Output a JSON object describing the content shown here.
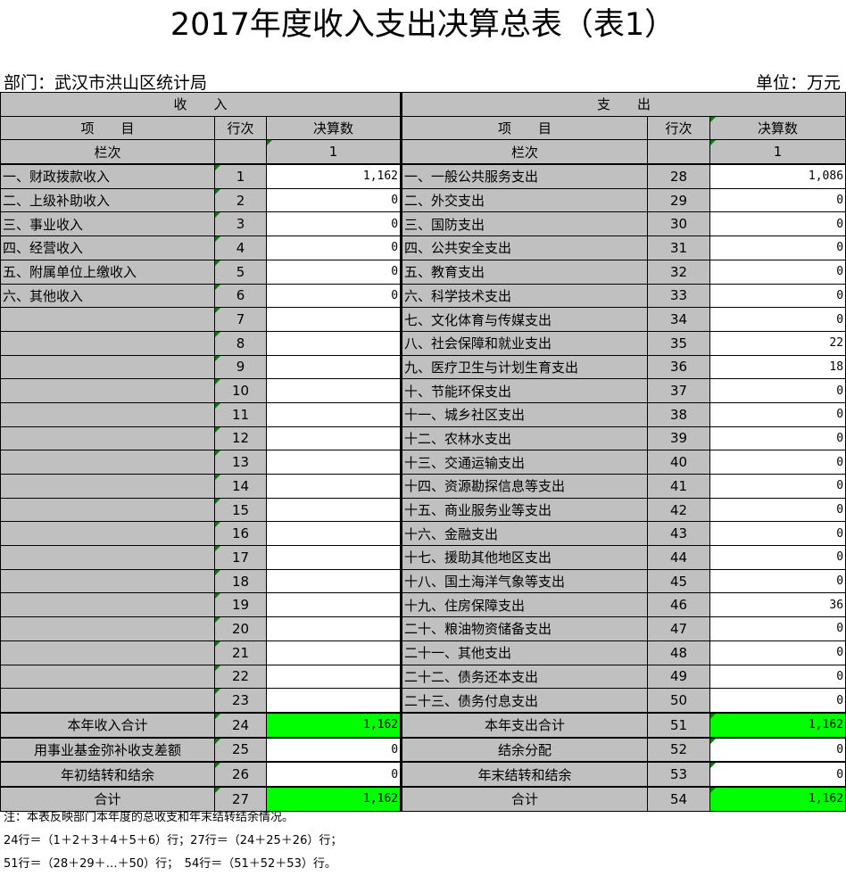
{
  "title": "2017年度收入支出决算总表（表1）",
  "department": "部门：武汉市洪山区统计局",
  "unit": "单位：万元",
  "headers": {
    "income": "收　　入",
    "expense": "支　　出",
    "item": "项　　目",
    "row_no": "行次",
    "amount": "决算数",
    "col_label": "栏次",
    "col_no": "1"
  },
  "income_rows": [
    {
      "name": "一、财政拨款收入",
      "no": "1",
      "value": "1,162"
    },
    {
      "name": "二、上级补助收入",
      "no": "2",
      "value": "0"
    },
    {
      "name": "三、事业收入",
      "no": "3",
      "value": "0"
    },
    {
      "name": "四、经营收入",
      "no": "4",
      "value": "0"
    },
    {
      "name": "五、附属单位上缴收入",
      "no": "5",
      "value": "0"
    },
    {
      "name": "六、其他收入",
      "no": "6",
      "value": "0"
    },
    {
      "name": "",
      "no": "7",
      "value": ""
    },
    {
      "name": "",
      "no": "8",
      "value": ""
    },
    {
      "name": "",
      "no": "9",
      "value": ""
    },
    {
      "name": "",
      "no": "10",
      "value": ""
    },
    {
      "name": "",
      "no": "11",
      "value": ""
    },
    {
      "name": "",
      "no": "12",
      "value": ""
    },
    {
      "name": "",
      "no": "13",
      "value": ""
    },
    {
      "name": "",
      "no": "14",
      "value": ""
    },
    {
      "name": "",
      "no": "15",
      "value": ""
    },
    {
      "name": "",
      "no": "16",
      "value": ""
    },
    {
      "name": "",
      "no": "17",
      "value": ""
    },
    {
      "name": "",
      "no": "18",
      "value": ""
    },
    {
      "name": "",
      "no": "19",
      "value": ""
    },
    {
      "name": "",
      "no": "20",
      "value": ""
    },
    {
      "name": "",
      "no": "21",
      "value": ""
    },
    {
      "name": "",
      "no": "22",
      "value": ""
    },
    {
      "name": "",
      "no": "23",
      "value": ""
    }
  ],
  "expense_rows": [
    {
      "name": "一、一般公共服务支出",
      "no": "28",
      "value": "1,086"
    },
    {
      "name": "二、外交支出",
      "no": "29",
      "value": "0"
    },
    {
      "name": "三、国防支出",
      "no": "30",
      "value": "0"
    },
    {
      "name": "四、公共安全支出",
      "no": "31",
      "value": "0"
    },
    {
      "name": "五、教育支出",
      "no": "32",
      "value": "0"
    },
    {
      "name": "六、科学技术支出",
      "no": "33",
      "value": "0"
    },
    {
      "name": "七、文化体育与传媒支出",
      "no": "34",
      "value": "0"
    },
    {
      "name": "八、社会保障和就业支出",
      "no": "35",
      "value": "22"
    },
    {
      "name": "九、医疗卫生与计划生育支出",
      "no": "36",
      "value": "18"
    },
    {
      "name": "十、节能环保支出",
      "no": "37",
      "value": "0"
    },
    {
      "name": "十一、城乡社区支出",
      "no": "38",
      "value": "0"
    },
    {
      "name": "十二、农林水支出",
      "no": "39",
      "value": "0"
    },
    {
      "name": "十三、交通运输支出",
      "no": "40",
      "value": "0"
    },
    {
      "name": "十四、资源勘探信息等支出",
      "no": "41",
      "value": "0"
    },
    {
      "name": "十五、商业服务业等支出",
      "no": "42",
      "value": "0"
    },
    {
      "name": "十六、金融支出",
      "no": "43",
      "value": "0"
    },
    {
      "name": "十七、援助其他地区支出",
      "no": "44",
      "value": "0"
    },
    {
      "name": "十八、国土海洋气象等支出",
      "no": "45",
      "value": "0"
    },
    {
      "name": "十九、住房保障支出",
      "no": "46",
      "value": "36"
    },
    {
      "name": "二十、粮油物资储备支出",
      "no": "47",
      "value": "0"
    },
    {
      "name": "二十一、其他支出",
      "no": "48",
      "value": "0"
    },
    {
      "name": "二十二、债务还本支出",
      "no": "49",
      "value": "0"
    },
    {
      "name": "二十三、债务付息支出",
      "no": "50",
      "value": "0"
    }
  ],
  "summary_rows": [
    {
      "in_name": "本年收入合计",
      "in_no": "24",
      "in_value": "1,162",
      "ex_name": "本年支出合计",
      "ex_no": "51",
      "ex_value": "1,162",
      "green": true
    },
    {
      "in_name": "用事业基金弥补收支差额",
      "in_no": "25",
      "in_value": "0",
      "ex_name": "结余分配",
      "ex_no": "52",
      "ex_value": "0",
      "green": false
    },
    {
      "in_name": "年初结转和结余",
      "in_no": "26",
      "in_value": "0",
      "ex_name": "年末结转和结余",
      "ex_no": "53",
      "ex_value": "0",
      "green": false
    },
    {
      "in_name": "合计",
      "in_no": "27",
      "in_value": "1,162",
      "ex_name": "合计",
      "ex_no": "54",
      "ex_value": "1,162",
      "green": true
    }
  ],
  "notes": [
    "注：本表反映部门本年度的总收支和年末结转结余情况。",
    "24行＝（1＋2＋3＋4＋5＋6）行；27行＝（24＋25＋26）行；",
    "51行＝（28＋29＋…＋50）行；　54行＝（51＋52＋53）行。"
  ],
  "colors": {
    "header_bg": "#c0c0c0",
    "highlight": "#00ff00"
  }
}
